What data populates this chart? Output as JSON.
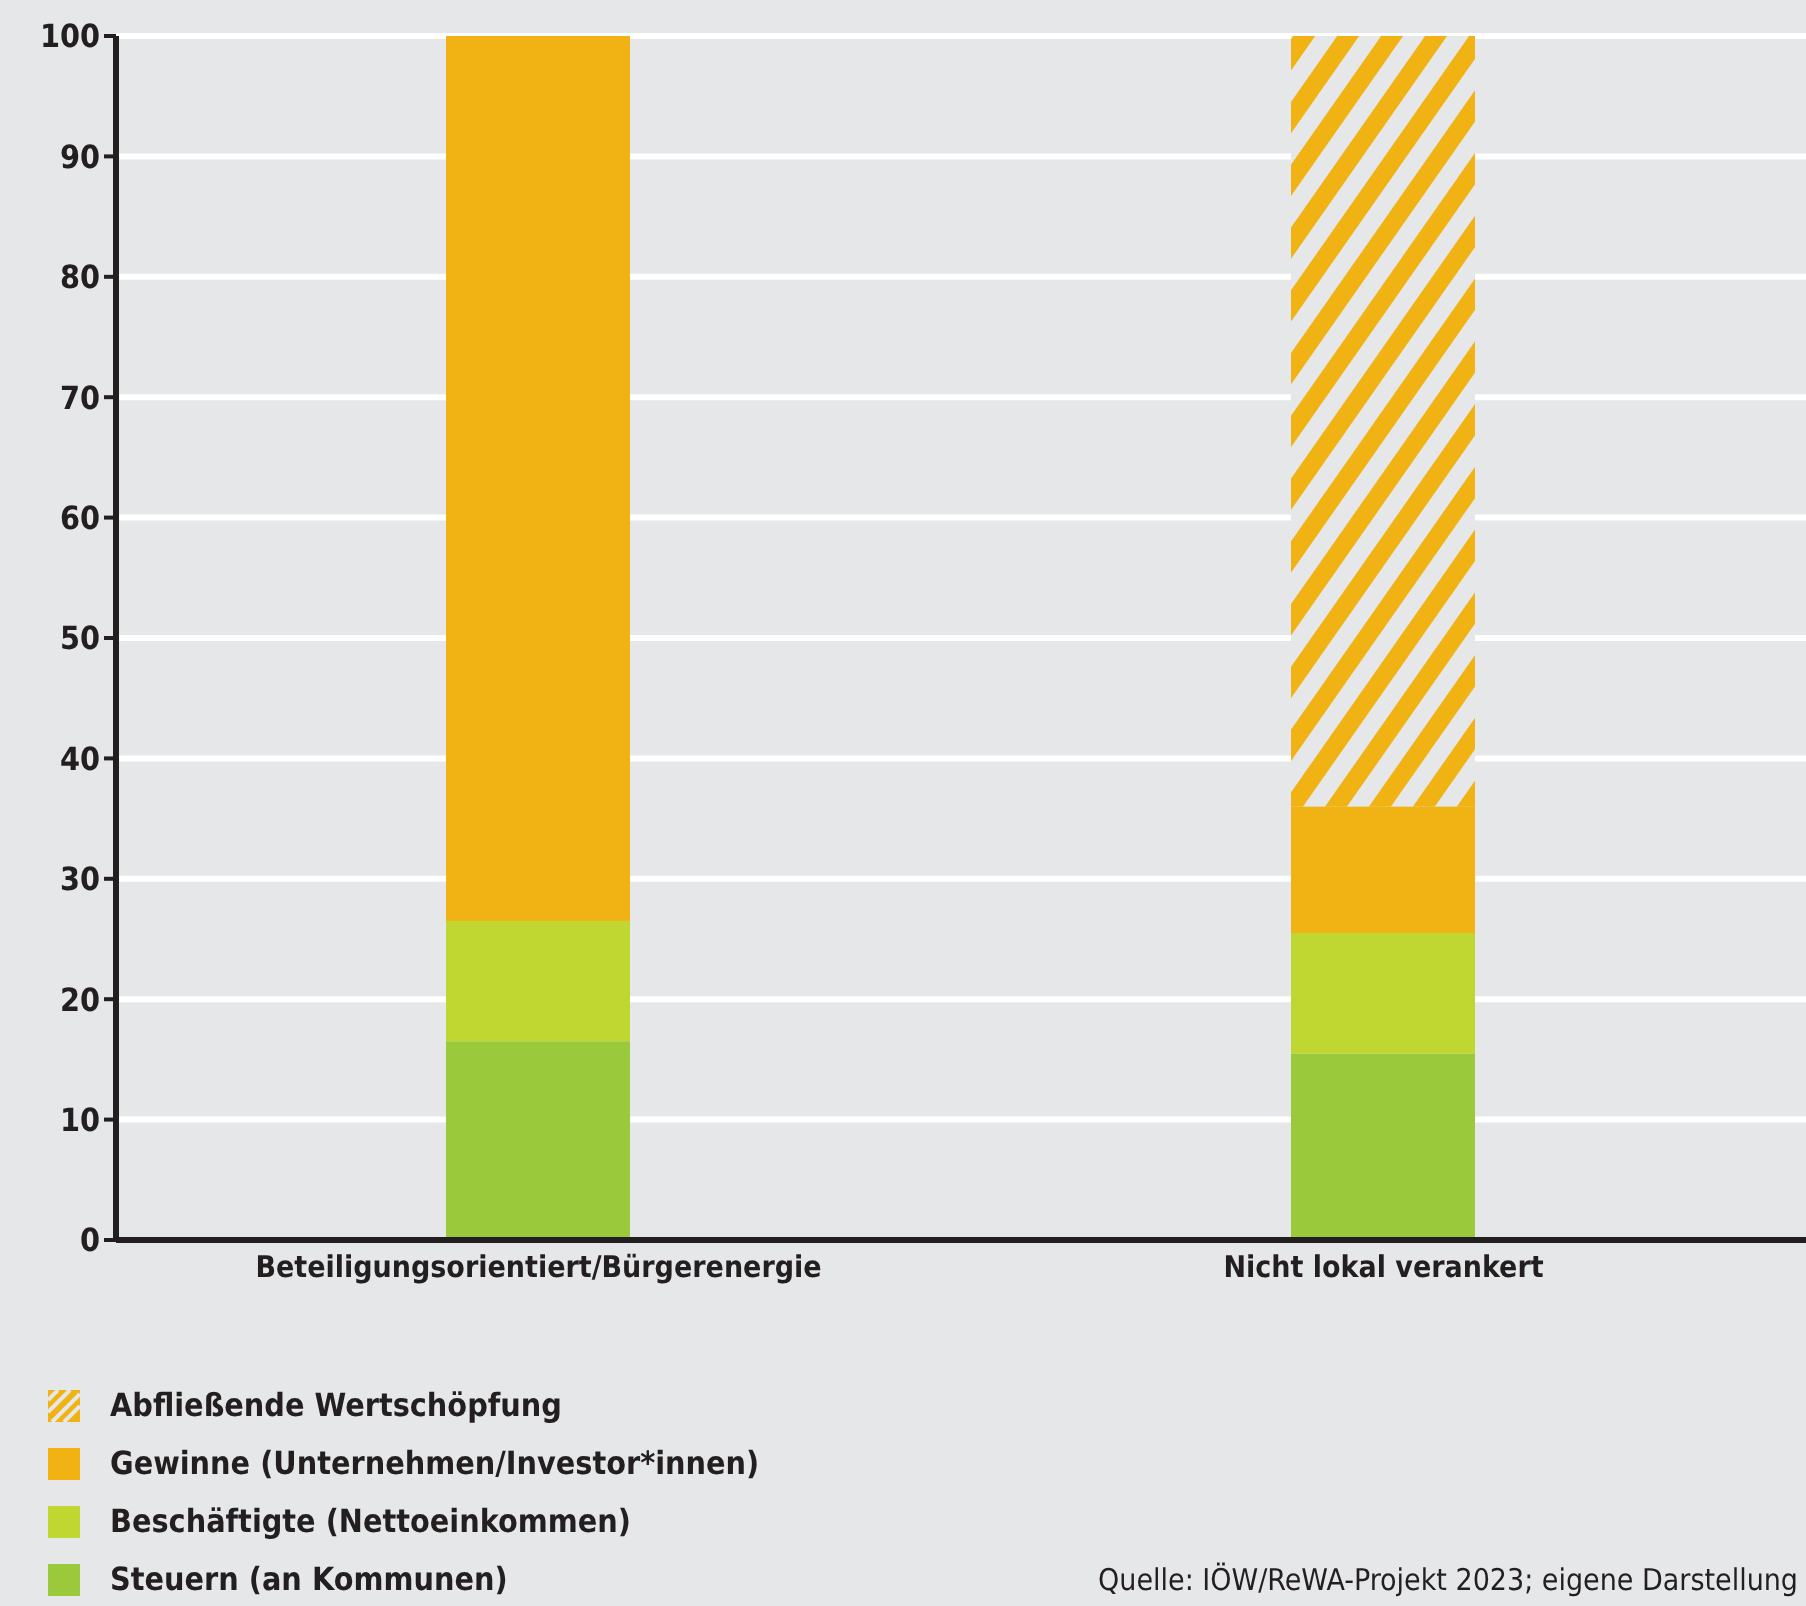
{
  "chart_data": {
    "type": "bar",
    "stacked": true,
    "categories": [
      "Beteiligungsorientiert/Bürgerenergie",
      "Nicht lokal verankert"
    ],
    "series": [
      {
        "name": "Steuern (an Kommunen)",
        "color": "#9aca3c",
        "values": [
          16.5,
          15.5
        ]
      },
      {
        "name": "Beschäftigte (Nettoeinkommen)",
        "color": "#bfd730",
        "values": [
          10,
          10
        ]
      },
      {
        "name": "Gewinne (Unternehmen/Investor*innen)",
        "color": "#f0b313",
        "values": [
          73.5,
          10.5
        ]
      },
      {
        "name": "Abfließende Wertschöpfung",
        "color": "#f0b313",
        "values": [
          0,
          64
        ]
      }
    ],
    "ylim": [
      0,
      100
    ],
    "yticks": [
      0,
      10,
      20,
      30,
      40,
      50,
      60,
      70,
      80,
      90,
      100
    ],
    "grid": "y",
    "legend": "bottom left",
    "annotations": [
      "Quelle: IÖW/ReWA-Projekt 2023; eigene Darstellung"
    ]
  }
}
